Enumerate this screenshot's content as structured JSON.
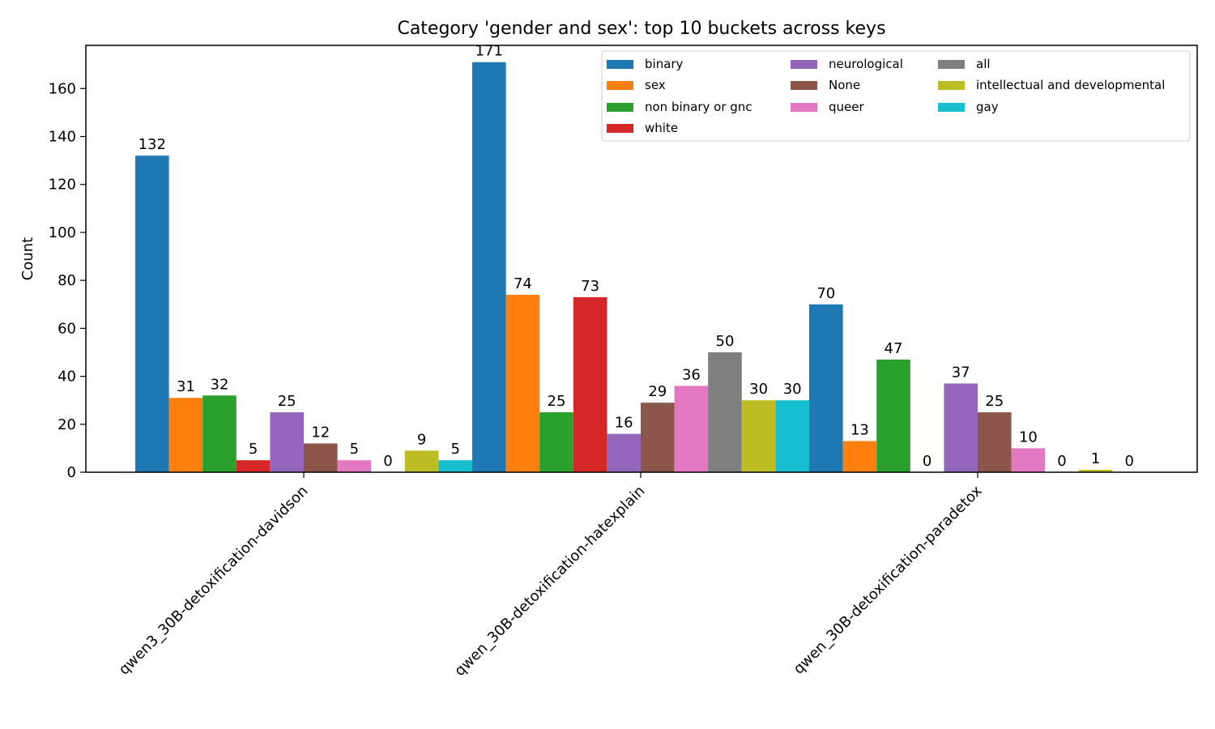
{
  "chart_data": {
    "type": "bar",
    "title": "Category 'gender and sex': top 10 buckets across keys",
    "xlabel": "",
    "ylabel": "Count",
    "ylim": [
      0,
      178
    ],
    "yticks": [
      0,
      20,
      40,
      60,
      80,
      100,
      120,
      140,
      160
    ],
    "categories": [
      "qwen3_30B-detoxification-davidson",
      "qwen_30B-detoxification-hatexplain",
      "qwen_30B-detoxification-paradetox"
    ],
    "series": [
      {
        "name": "binary",
        "color": "#1f77b4",
        "values": [
          132,
          171,
          70
        ]
      },
      {
        "name": "sex",
        "color": "#ff7f0e",
        "values": [
          31,
          74,
          13
        ]
      },
      {
        "name": "non binary or gnc",
        "color": "#2ca02c",
        "values": [
          32,
          25,
          47
        ]
      },
      {
        "name": "white",
        "color": "#d62728",
        "values": [
          5,
          73,
          0
        ]
      },
      {
        "name": "neurological",
        "color": "#9467bd",
        "values": [
          25,
          16,
          37
        ]
      },
      {
        "name": "None",
        "color": "#8c564b",
        "values": [
          12,
          29,
          25
        ]
      },
      {
        "name": "queer",
        "color": "#e377c2",
        "values": [
          5,
          36,
          10
        ]
      },
      {
        "name": "all",
        "color": "#7f7f7f",
        "values": [
          0,
          50,
          0
        ]
      },
      {
        "name": "intellectual and developmental",
        "color": "#bcbd22",
        "values": [
          9,
          30,
          1
        ]
      },
      {
        "name": "gay",
        "color": "#17becf",
        "values": [
          5,
          30,
          0
        ]
      }
    ],
    "legend_position": "top-right",
    "grid": false
  }
}
